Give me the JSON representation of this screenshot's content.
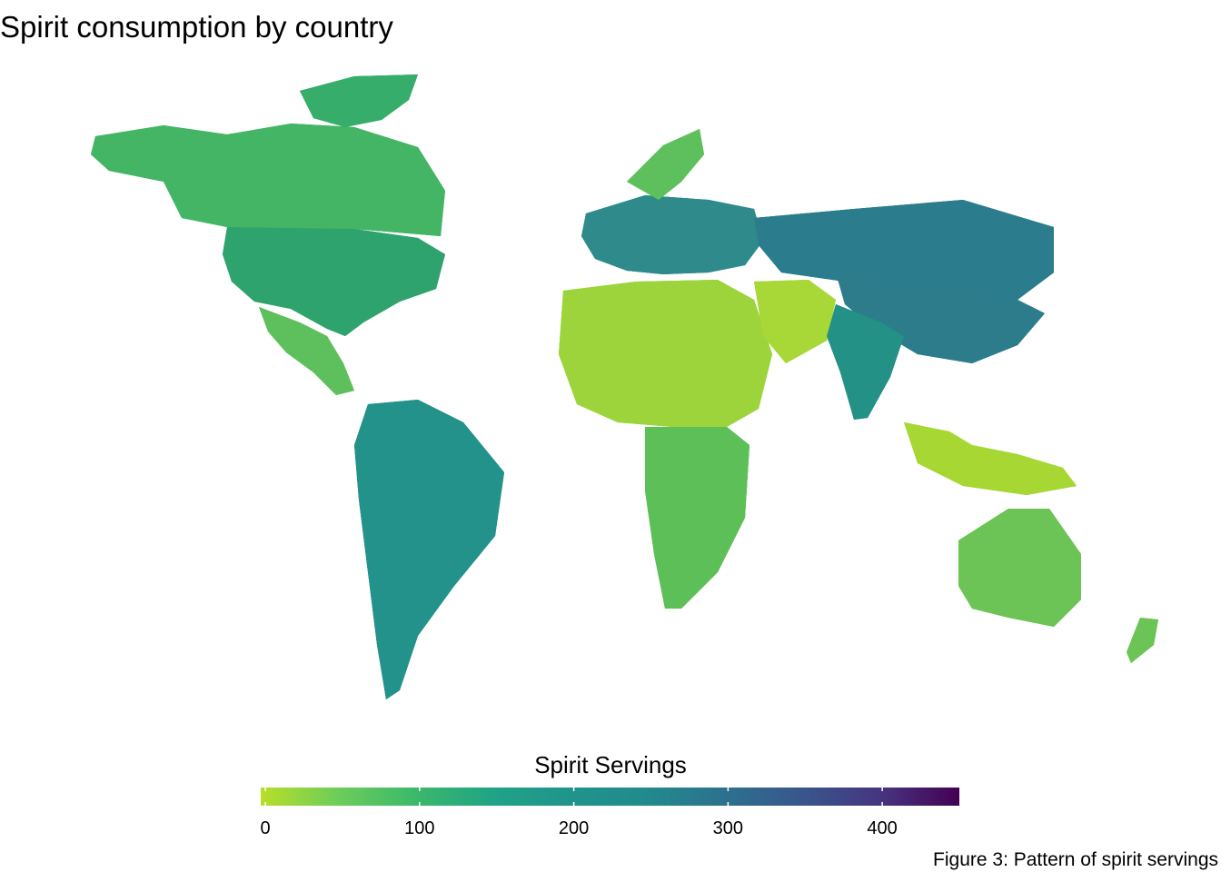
{
  "title": "Spirit consumption by country",
  "legend": {
    "title": "Spirit Servings",
    "ticks": [
      0,
      100,
      200,
      300,
      400
    ],
    "min": -3,
    "max": 450,
    "palette": [
      "#b8de29",
      "#6ccd5a",
      "#3bb86b",
      "#20a386",
      "#1f948c",
      "#228a8d",
      "#2d708e",
      "#39568c",
      "#463480",
      "#440154"
    ]
  },
  "regions": [
    {
      "name": "North America",
      "color": "#2ea36e"
    },
    {
      "name": "Canada",
      "color": "#44b564"
    },
    {
      "name": "Greenland",
      "color": "#36ad6a"
    },
    {
      "name": "Central America",
      "color": "#5dc05c"
    },
    {
      "name": "South America",
      "color": "#23928a"
    },
    {
      "name": "Europe",
      "color": "#2f8a8c"
    },
    {
      "name": "Russia",
      "color": "#2b7d8d"
    },
    {
      "name": "Africa",
      "color": "#9dd43b"
    },
    {
      "name": "Southern Africa",
      "color": "#5cbf58"
    },
    {
      "name": "Middle East",
      "color": "#a8d838"
    },
    {
      "name": "Asia",
      "color": "#2c7c8c"
    },
    {
      "name": "India",
      "color": "#239186"
    },
    {
      "name": "Southeast Asia",
      "color": "#a6d733"
    },
    {
      "name": "Australia",
      "color": "#6cc456"
    }
  ],
  "caption": "Figure 3: Pattern of spirit servings"
}
